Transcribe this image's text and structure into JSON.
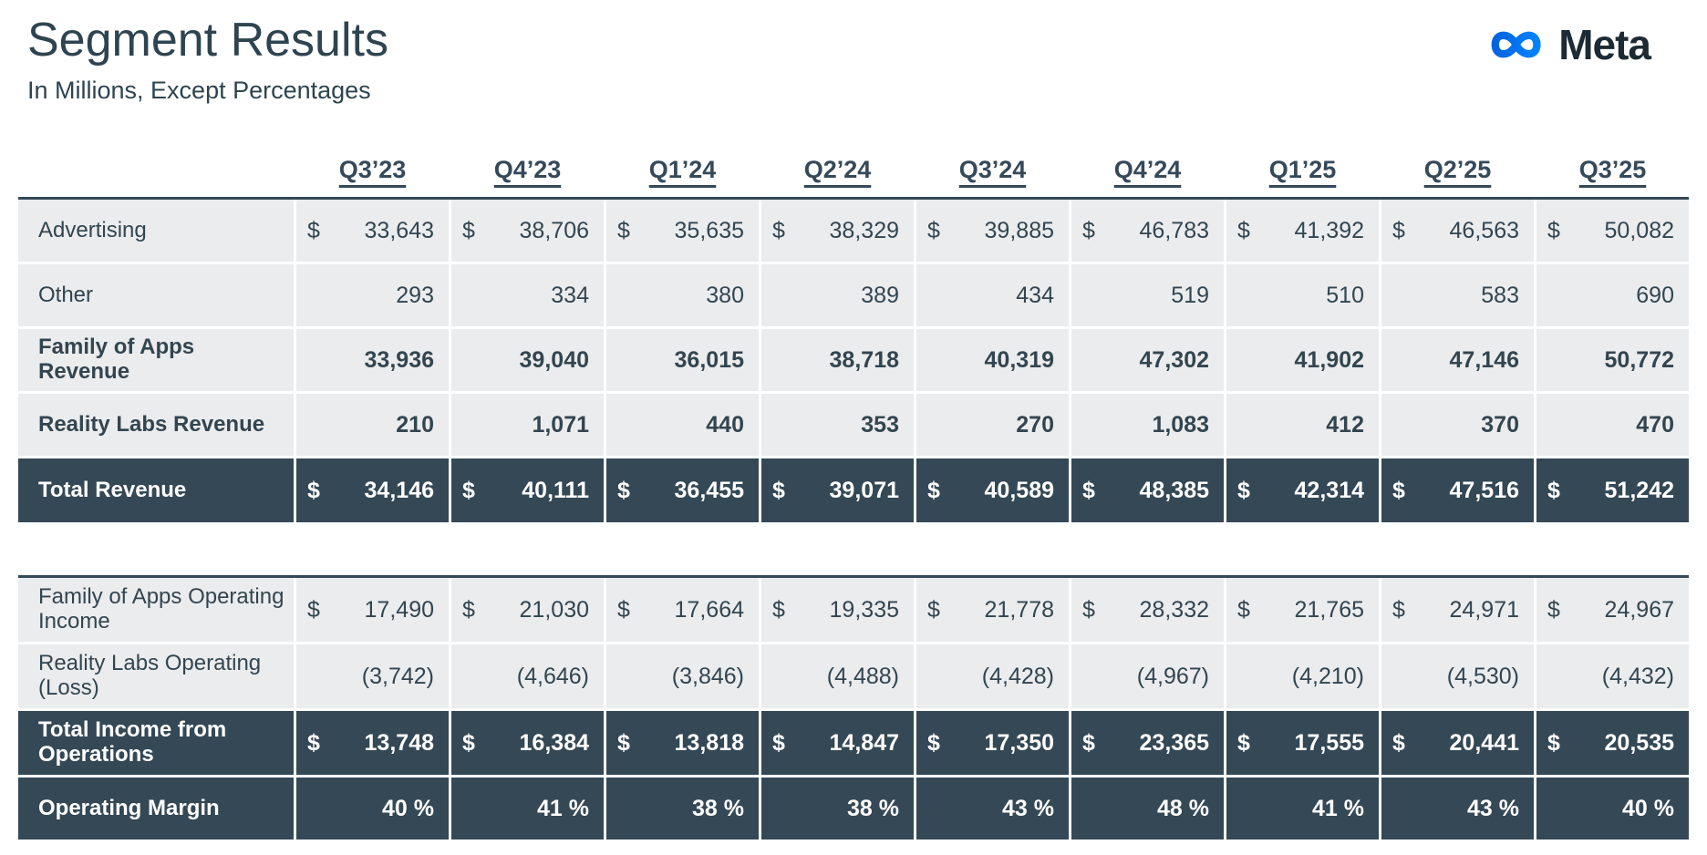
{
  "header": {
    "title": "Segment Results",
    "subtitle": "In Millions, Except Percentages",
    "logo_text": "Meta"
  },
  "colors": {
    "dark_row": "#344855",
    "light_row": "#ebecee",
    "text": "#33454f",
    "logo_blue_start": "#0064e0",
    "logo_blue_end": "#0082fb",
    "logo_text_color": "#1c2b33"
  },
  "quarters": [
    "Q3’23",
    "Q4’23",
    "Q1’24",
    "Q2’24",
    "Q3’24",
    "Q4’24",
    "Q1’25",
    "Q2’25",
    "Q3’25"
  ],
  "tables": [
    {
      "name": "revenue",
      "rows": [
        {
          "label": "Advertising",
          "style": "light",
          "bold": false,
          "dollar": true,
          "values": [
            "33,643",
            "38,706",
            "35,635",
            "38,329",
            "39,885",
            "46,783",
            "41,392",
            "46,563",
            "50,082"
          ]
        },
        {
          "label": "Other",
          "style": "light",
          "bold": false,
          "dollar": false,
          "values": [
            "293",
            "334",
            "380",
            "389",
            "434",
            "519",
            "510",
            "583",
            "690"
          ]
        },
        {
          "label": "Family of Apps Revenue",
          "style": "light",
          "bold": true,
          "dollar": false,
          "values": [
            "33,936",
            "39,040",
            "36,015",
            "38,718",
            "40,319",
            "47,302",
            "41,902",
            "47,146",
            "50,772"
          ]
        },
        {
          "label": "Reality Labs Revenue",
          "style": "light",
          "bold": true,
          "dollar": false,
          "values": [
            "210",
            "1,071",
            "440",
            "353",
            "270",
            "1,083",
            "412",
            "370",
            "470"
          ]
        },
        {
          "label": "Total Revenue",
          "style": "dark",
          "bold": true,
          "dollar": true,
          "values": [
            "34,146",
            "40,111",
            "36,455",
            "39,071",
            "40,589",
            "48,385",
            "42,314",
            "47,516",
            "51,242"
          ]
        }
      ]
    },
    {
      "name": "operating",
      "rows": [
        {
          "label": "Family of Apps Operating Income",
          "style": "light",
          "bold": false,
          "dollar": true,
          "values": [
            "17,490",
            "21,030",
            "17,664",
            "19,335",
            "21,778",
            "28,332",
            "21,765",
            "24,971",
            "24,967"
          ]
        },
        {
          "label": "Reality Labs Operating (Loss)",
          "style": "light",
          "bold": false,
          "dollar": false,
          "values": [
            "(3,742)",
            "(4,646)",
            "(3,846)",
            "(4,488)",
            "(4,428)",
            "(4,967)",
            "(4,210)",
            "(4,530)",
            "(4,432)"
          ]
        },
        {
          "label": "Total Income from Operations",
          "style": "dark",
          "bold": true,
          "dollar": true,
          "values": [
            "13,748",
            "16,384",
            "13,818",
            "14,847",
            "17,350",
            "23,365",
            "17,555",
            "20,441",
            "20,535"
          ]
        },
        {
          "label": "Operating Margin",
          "style": "dark",
          "bold": true,
          "dollar": false,
          "values": [
            "40 %",
            "41 %",
            "38 %",
            "38 %",
            "43 %",
            "48 %",
            "41 %",
            "43 %",
            "40 %"
          ]
        }
      ]
    }
  ]
}
